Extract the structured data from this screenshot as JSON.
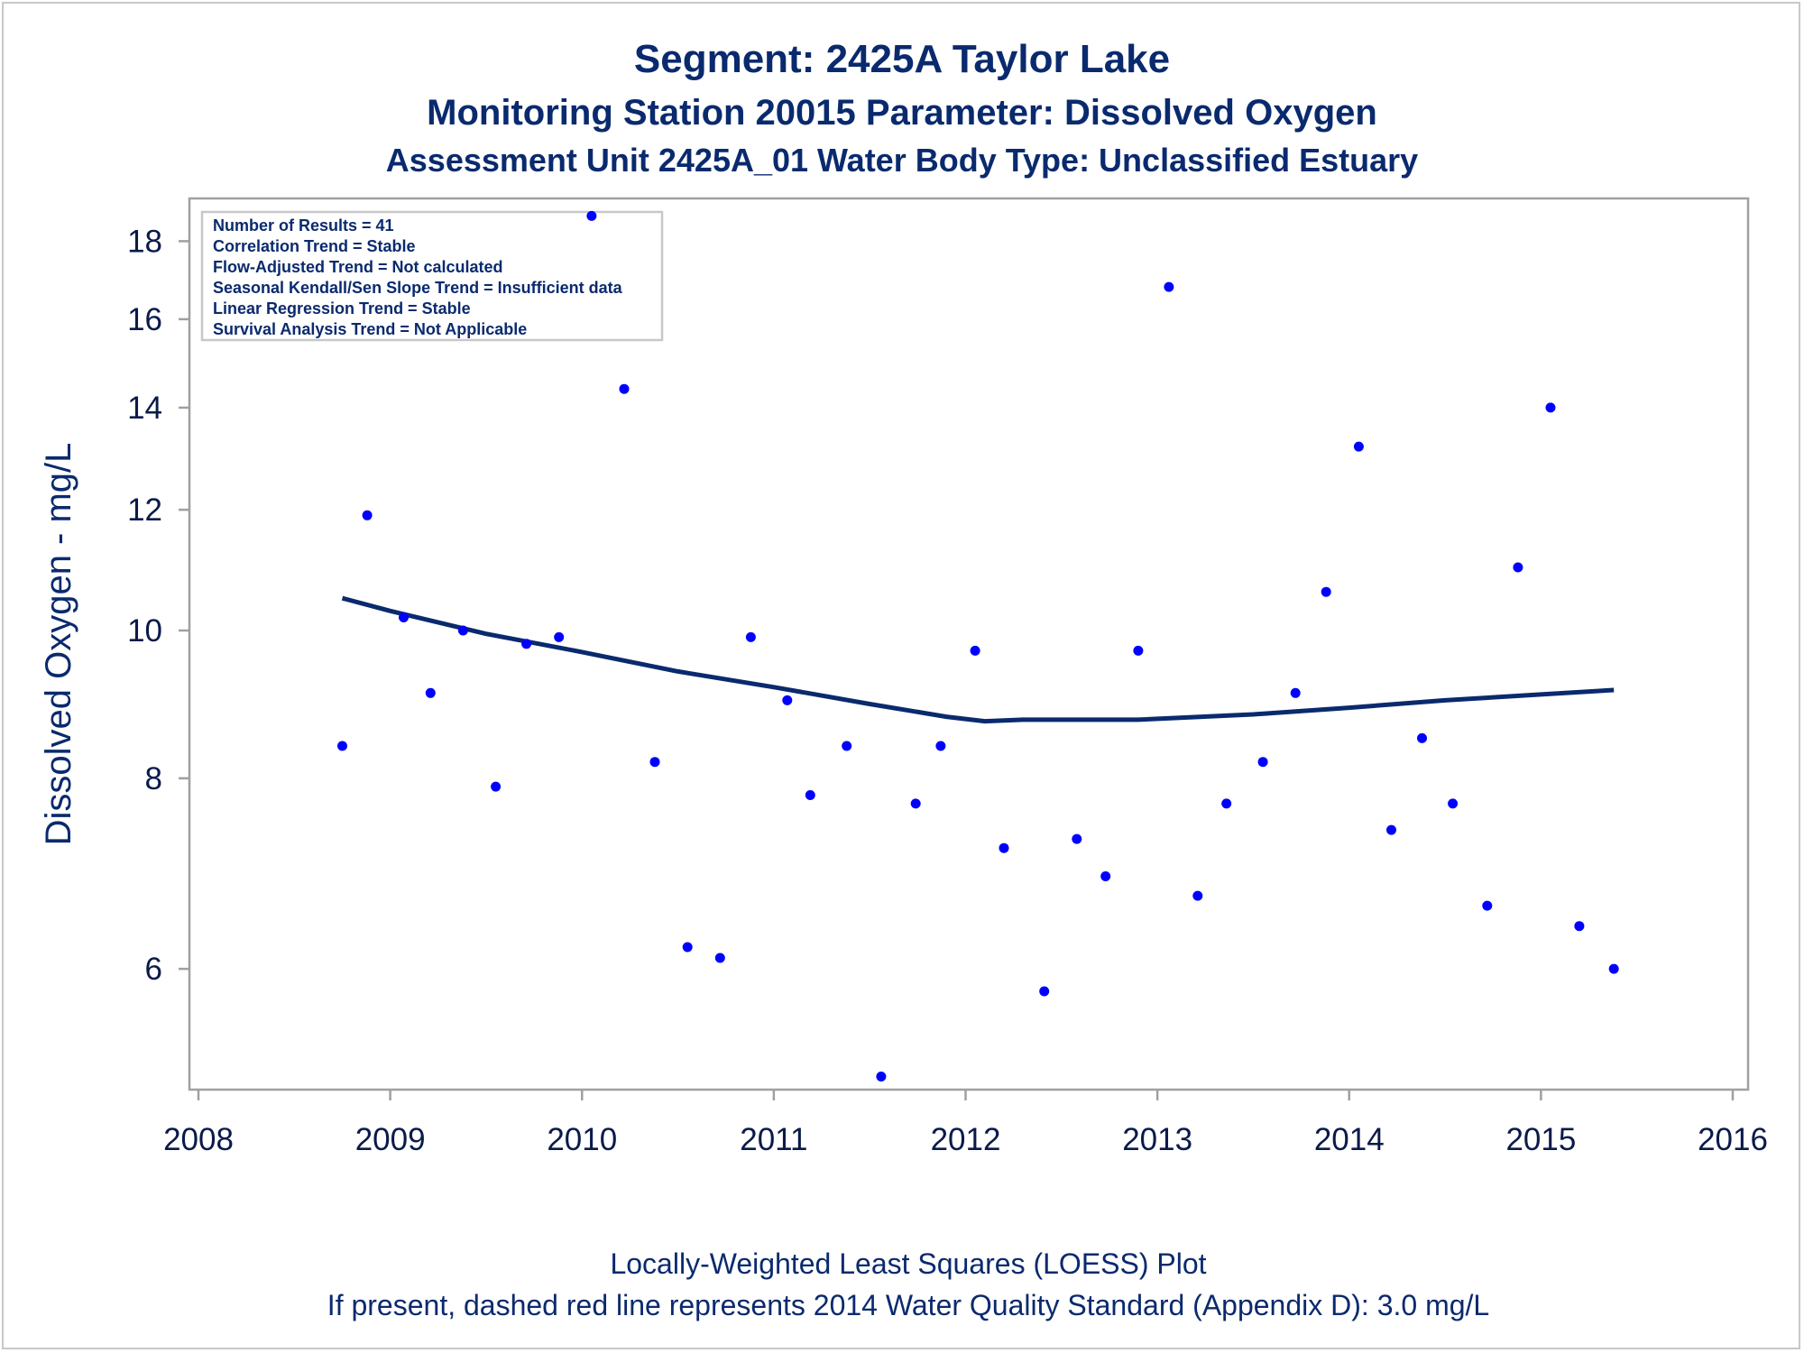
{
  "titles": {
    "line1": "Segment: 2425A  Taylor Lake",
    "line2": "Monitoring Station 20015 Parameter: Dissolved Oxygen",
    "line3": "Assessment Unit 2425A_01   Water Body Type: Unclassified Estuary"
  },
  "footnotes": {
    "line1": "Locally-Weighted Least Squares (LOESS) Plot",
    "line2": "If present, dashed red line represents 2014 Water Quality Standard (Appendix D): 3.0 mg/L"
  },
  "info_box": [
    "Number of Results = 41",
    "Correlation Trend = Stable",
    "Flow-Adjusted Trend = Not calculated",
    "Seasonal Kendall/Sen Slope Trend = Insufficient data",
    "Linear Regression Trend = Stable",
    "Survival Analysis Trend = Not Applicable"
  ],
  "colors": {
    "points": "#0000ff",
    "loess": "#0a2a6e",
    "text": "#0a2a6e",
    "axis": "#a0a0a0"
  },
  "chart_data": {
    "type": "scatter",
    "xlabel": "",
    "ylabel": "Dissolved Oxygen - mg/L",
    "x_scale": "time",
    "y_scale": "log",
    "xlim": [
      2008,
      2016
    ],
    "ylim": [
      5.0,
      19.2
    ],
    "x_ticks": [
      2008,
      2009,
      2010,
      2011,
      2012,
      2013,
      2014,
      2015,
      2016
    ],
    "y_ticks": [
      6,
      8,
      10,
      12,
      14,
      16,
      18
    ],
    "grid": false,
    "points": [
      {
        "x": 2008.75,
        "y": 8.4
      },
      {
        "x": 2008.88,
        "y": 11.9
      },
      {
        "x": 2009.07,
        "y": 10.2
      },
      {
        "x": 2009.21,
        "y": 9.1
      },
      {
        "x": 2009.38,
        "y": 10.0
      },
      {
        "x": 2009.55,
        "y": 7.9
      },
      {
        "x": 2009.71,
        "y": 9.8
      },
      {
        "x": 2009.88,
        "y": 9.9
      },
      {
        "x": 2010.05,
        "y": 18.7
      },
      {
        "x": 2010.22,
        "y": 14.4
      },
      {
        "x": 2010.38,
        "y": 8.2
      },
      {
        "x": 2010.55,
        "y": 6.2
      },
      {
        "x": 2010.72,
        "y": 6.1
      },
      {
        "x": 2010.88,
        "y": 9.9
      },
      {
        "x": 2011.07,
        "y": 9.0
      },
      {
        "x": 2011.19,
        "y": 7.8
      },
      {
        "x": 2011.38,
        "y": 8.4
      },
      {
        "x": 2011.56,
        "y": 5.1
      },
      {
        "x": 2011.74,
        "y": 7.7
      },
      {
        "x": 2011.87,
        "y": 8.4
      },
      {
        "x": 2012.05,
        "y": 9.7
      },
      {
        "x": 2012.2,
        "y": 7.2
      },
      {
        "x": 2012.41,
        "y": 5.8
      },
      {
        "x": 2012.58,
        "y": 7.3
      },
      {
        "x": 2012.73,
        "y": 6.9
      },
      {
        "x": 2012.9,
        "y": 9.7
      },
      {
        "x": 2013.06,
        "y": 16.8
      },
      {
        "x": 2013.21,
        "y": 6.7
      },
      {
        "x": 2013.36,
        "y": 7.7
      },
      {
        "x": 2013.55,
        "y": 8.2
      },
      {
        "x": 2013.72,
        "y": 9.1
      },
      {
        "x": 2013.88,
        "y": 10.6
      },
      {
        "x": 2014.05,
        "y": 13.2
      },
      {
        "x": 2014.22,
        "y": 7.4
      },
      {
        "x": 2014.38,
        "y": 8.5
      },
      {
        "x": 2014.54,
        "y": 7.7
      },
      {
        "x": 2014.72,
        "y": 6.6
      },
      {
        "x": 2014.88,
        "y": 11.0
      },
      {
        "x": 2015.05,
        "y": 14.0
      },
      {
        "x": 2015.2,
        "y": 6.4
      },
      {
        "x": 2015.38,
        "y": 6.0
      }
    ],
    "loess": [
      {
        "x": 2008.75,
        "y": 10.5
      },
      {
        "x": 2009.0,
        "y": 10.3
      },
      {
        "x": 2009.5,
        "y": 9.95
      },
      {
        "x": 2010.0,
        "y": 9.68
      },
      {
        "x": 2010.5,
        "y": 9.4
      },
      {
        "x": 2011.0,
        "y": 9.18
      },
      {
        "x": 2011.5,
        "y": 8.95
      },
      {
        "x": 2011.9,
        "y": 8.78
      },
      {
        "x": 2012.1,
        "y": 8.72
      },
      {
        "x": 2012.3,
        "y": 8.74
      },
      {
        "x": 2012.9,
        "y": 8.74
      },
      {
        "x": 2013.5,
        "y": 8.81
      },
      {
        "x": 2014.0,
        "y": 8.9
      },
      {
        "x": 2014.5,
        "y": 9.0
      },
      {
        "x": 2015.0,
        "y": 9.08
      },
      {
        "x": 2015.38,
        "y": 9.14
      }
    ]
  }
}
